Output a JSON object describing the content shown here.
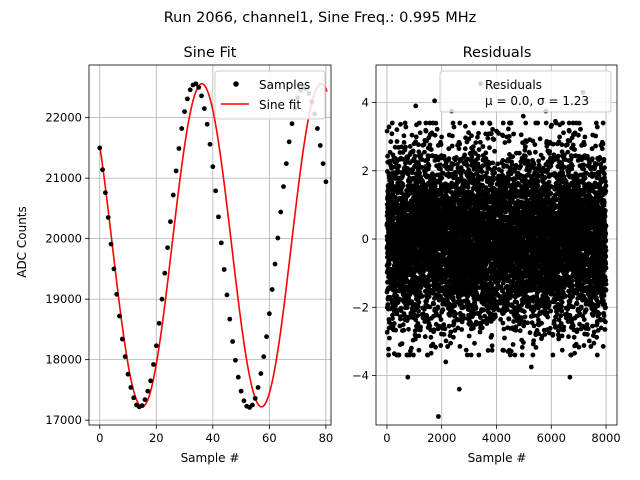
{
  "suptitle": "Run 2066, channel1, Sine Freq.: 0.995 MHz",
  "chart_data": [
    {
      "type": "line",
      "title": "Sine Fit",
      "xlabel": "Sample #",
      "ylabel": "ADC Counts",
      "xlim": [
        -3.8,
        81.8
      ],
      "ylim": [
        16920,
        22870
      ],
      "xticks": [
        0,
        20,
        40,
        60,
        80
      ],
      "yticks": [
        17000,
        18000,
        19000,
        20000,
        21000,
        22000
      ],
      "grid": true,
      "legend": {
        "position": "top-right",
        "entries": [
          "Samples",
          "Sine fit"
        ]
      },
      "fit": {
        "offset": 19890,
        "amplitude": 2670,
        "period": 42.2,
        "phase_deg": 142,
        "x_range": [
          0,
          80.4
        ]
      },
      "series": [
        {
          "name": "Samples",
          "style": "black-dots",
          "x": [
            0,
            1,
            2,
            3,
            4,
            5,
            6,
            7,
            8,
            9,
            10,
            11,
            12,
            13,
            14,
            15,
            16,
            17,
            18,
            19,
            20,
            21,
            22,
            23,
            24,
            25,
            26,
            27,
            28,
            29,
            30,
            31,
            32,
            33,
            34,
            35,
            36,
            37,
            38,
            39,
            40,
            41,
            42,
            43,
            44,
            45,
            46,
            47,
            48,
            49,
            50,
            51,
            52,
            53,
            54,
            55,
            56,
            57,
            58,
            59,
            60,
            61,
            62,
            63,
            64,
            65,
            66,
            67,
            68,
            69,
            70,
            71,
            72,
            73,
            74,
            75,
            76,
            77,
            78,
            79,
            80
          ],
          "y": [
            21500,
            21140,
            20760,
            20350,
            19910,
            19500,
            19080,
            18720,
            18340,
            18050,
            17760,
            17540,
            17370,
            17250,
            17220,
            17240,
            17340,
            17480,
            17650,
            17920,
            18230,
            18600,
            19000,
            19430,
            19850,
            20280,
            20720,
            21120,
            21490,
            21820,
            22100,
            22310,
            22460,
            22540,
            22560,
            22500,
            22360,
            22150,
            21890,
            21560,
            21190,
            20790,
            20360,
            19930,
            19490,
            19070,
            18670,
            18300,
            17990,
            17710,
            17480,
            17320,
            17230,
            17210,
            17250,
            17360,
            17540,
            17770,
            18050,
            18380,
            18760,
            19160,
            19580,
            20010,
            20440,
            20860,
            21240,
            21600,
            21900,
            22150,
            22330,
            22450,
            22490,
            22480,
            22400,
            22260,
            22060,
            21820,
            21540,
            21240,
            20940
          ]
        },
        {
          "name": "Sine fit",
          "style": "red-line"
        }
      ]
    },
    {
      "type": "scatter",
      "title": "Residuals",
      "xlabel": "Sample #",
      "ylabel": "",
      "xlim": [
        -400,
        8400
      ],
      "ylim": [
        -5.45,
        5.1
      ],
      "xticks": [
        0,
        2000,
        4000,
        6000,
        8000
      ],
      "yticks": [
        -4,
        -2,
        0,
        2,
        4
      ],
      "grid": true,
      "legend": {
        "position": "top-right",
        "entries": [
          "Residuals",
          "μ = 0.0, σ = 1.23"
        ]
      },
      "stats": {
        "mean": 0.0,
        "sigma": 1.23,
        "n_points": 8000
      },
      "outliers": [
        {
          "x": 1880,
          "y": -5.2
        },
        {
          "x": 2640,
          "y": -4.4
        },
        {
          "x": 760,
          "y": -4.05
        },
        {
          "x": 6680,
          "y": -4.05
        },
        {
          "x": 7160,
          "y": 4.3
        },
        {
          "x": 3420,
          "y": 4.55
        },
        {
          "x": 1050,
          "y": 3.9
        },
        {
          "x": 1740,
          "y": 4.05
        },
        {
          "x": 2360,
          "y": 3.75
        },
        {
          "x": 4980,
          "y": 3.6
        },
        {
          "x": 5800,
          "y": 3.75
        },
        {
          "x": 5270,
          "y": -3.75
        },
        {
          "x": 7680,
          "y": -3.4
        },
        {
          "x": 60,
          "y": -3.4
        },
        {
          "x": 3180,
          "y": 3.4
        },
        {
          "x": 4420,
          "y": -3.3
        },
        {
          "x": 6150,
          "y": 3.45
        },
        {
          "x": 2150,
          "y": -3.6
        }
      ]
    }
  ]
}
